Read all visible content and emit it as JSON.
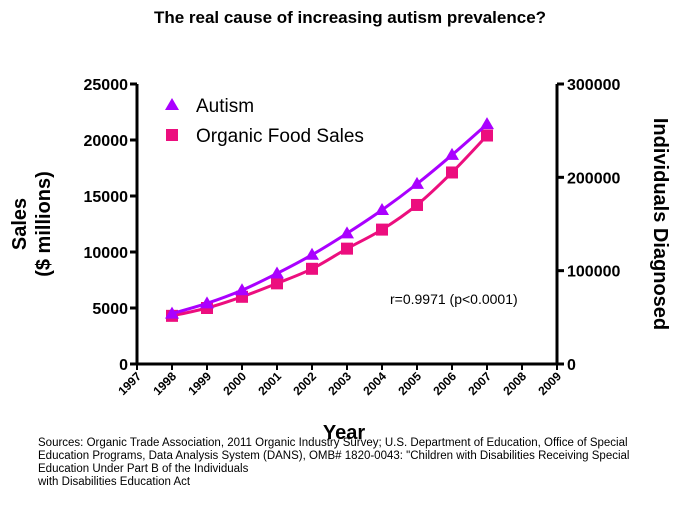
{
  "chart_data": {
    "type": "line",
    "title": "The real cause of increasing autism prevalence?",
    "xlabel": "Year",
    "ylabel_left_line1": "Sales",
    "ylabel_left_line2": "($ millions)",
    "ylabel_right": "Individuals Diagnosed",
    "x_ticks": [
      "1997",
      "1998",
      "1999",
      "2000",
      "2001",
      "2002",
      "2003",
      "2004",
      "2005",
      "2006",
      "2007",
      "2008",
      "2009"
    ],
    "xlim": [
      1997,
      2009
    ],
    "ylim_left": [
      0,
      25000
    ],
    "y_ticks_left": [
      "0",
      "5000",
      "10000",
      "15000",
      "20000",
      "25000"
    ],
    "ylim_right": [
      0,
      300000
    ],
    "y_ticks_right": [
      "0",
      "100000",
      "200000",
      "300000"
    ],
    "annotation": "r=0.9971 (p<0.0001)",
    "legend_position": "top-left",
    "series": [
      {
        "name": "Autism",
        "axis": "right",
        "marker": "triangle",
        "color": "#aa00ff",
        "x": [
          1998,
          1999,
          2000,
          2001,
          2002,
          2003,
          2004,
          2005,
          2006,
          2007
        ],
        "values": [
          54000,
          65000,
          79000,
          97000,
          117000,
          140000,
          165000,
          193000,
          224000,
          257000
        ]
      },
      {
        "name": "Organic Food Sales",
        "axis": "left",
        "marker": "square",
        "color": "#ec0e7e",
        "x": [
          1998,
          1999,
          2000,
          2001,
          2002,
          2003,
          2004,
          2005,
          2006,
          2007
        ],
        "values": [
          4300,
          5000,
          6000,
          7200,
          8500,
          10300,
          12000,
          14200,
          17100,
          20400
        ]
      }
    ]
  },
  "sources": [
    "Sources: Organic Trade Association,  2011 Organic Industry Survey; U.S. Department of Education, Office of Special",
    "Education Programs, Data Analysis System (DANS), OMB# 1820-0043: \"Children with Disabilities Receiving Special",
    "Education Under Part B of the Individuals",
    "with Disabilities Education Act"
  ]
}
